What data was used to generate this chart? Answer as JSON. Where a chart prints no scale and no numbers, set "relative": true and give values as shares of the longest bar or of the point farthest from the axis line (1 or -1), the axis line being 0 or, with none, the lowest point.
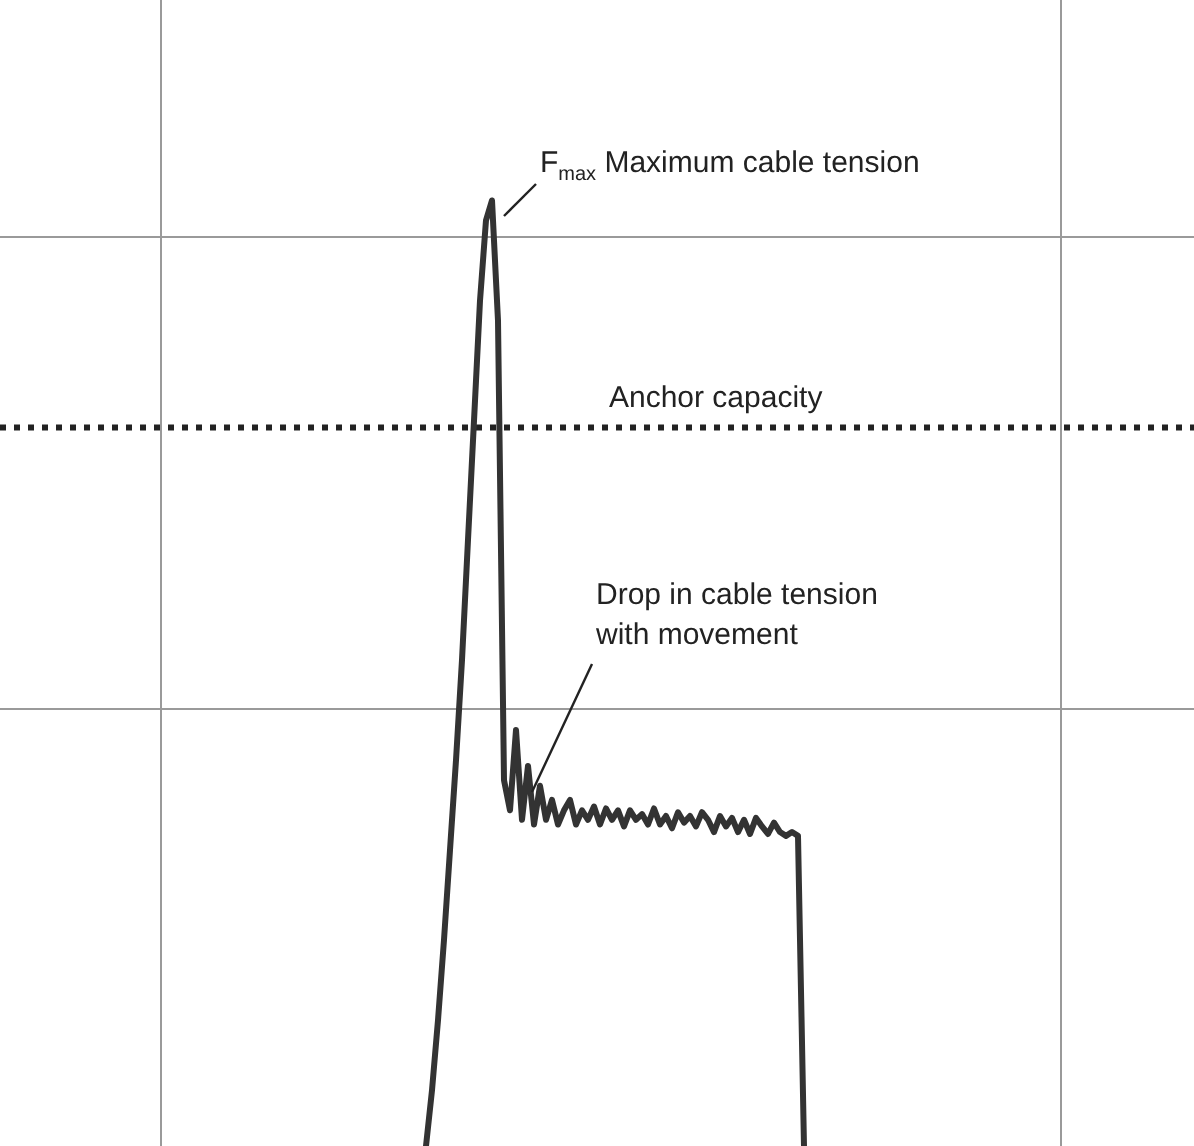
{
  "chart_data": {
    "type": "line",
    "relative": true,
    "grid": true,
    "legend": false,
    "marker": "none",
    "line_style": "solid",
    "categories": [
      null,
      null,
      null,
      null,
      null,
      null,
      null,
      null,
      null,
      null,
      null,
      null,
      null,
      null,
      null,
      null,
      null,
      null,
      null,
      null,
      null,
      null,
      null,
      null,
      null,
      null,
      null,
      null,
      null,
      null,
      null,
      null,
      null,
      null,
      null,
      null,
      null,
      null,
      null,
      null,
      null,
      null,
      null,
      null,
      null,
      null,
      null,
      null,
      null,
      null,
      null,
      null,
      null,
      null,
      null,
      null,
      null,
      null,
      null,
      null,
      null,
      null,
      null,
      null,
      null,
      null,
      null,
      null,
      null,
      null,
      null,
      null,
      null,
      null,
      null,
      null,
      null,
      null,
      null,
      null,
      null,
      null,
      null,
      null,
      null,
      null,
      null,
      null,
      null,
      null,
      null,
      null,
      null,
      null,
      null,
      null,
      null,
      null,
      null,
      null,
      null,
      null,
      null,
      null,
      null,
      null,
      null,
      null,
      null,
      null,
      null,
      null,
      null,
      null,
      null,
      null,
      null,
      null,
      null,
      null,
      null,
      null,
      null,
      null,
      null,
      null,
      null,
      null,
      null,
      null,
      null,
      null,
      null,
      null,
      null,
      null,
      null,
      null,
      null,
      null,
      null,
      null,
      null,
      null,
      null,
      null,
      null,
      null,
      null,
      null,
      null,
      null,
      null,
      null,
      null,
      null,
      null,
      null,
      null,
      null,
      null,
      null,
      null,
      null,
      null,
      null,
      null,
      null,
      null,
      null,
      null,
      null,
      null,
      null,
      null,
      null,
      null,
      null,
      null,
      null,
      null,
      null,
      null,
      null,
      null,
      null,
      null,
      null,
      null,
      null,
      null,
      null,
      null,
      null,
      null,
      null,
      null,
      null,
      null,
      null
    ],
    "series": [
      {
        "color": "#333333",
        "values": [
          null,
          null,
          null,
          null,
          null,
          null,
          null,
          null,
          null,
          null,
          null,
          null,
          null,
          null,
          null,
          null,
          null,
          null,
          null,
          null,
          null,
          null,
          null,
          null,
          null,
          null,
          null,
          null,
          null,
          null,
          null,
          null,
          null,
          null,
          null,
          null,
          null,
          null,
          null,
          null,
          null,
          null,
          null,
          null,
          null,
          null,
          null,
          null,
          null,
          null,
          null,
          null,
          null,
          null,
          null,
          null,
          null,
          null,
          null,
          null,
          null,
          null,
          null,
          null,
          null,
          null,
          null,
          null,
          null,
          null,
          null,
          0,
          0.059,
          0.133,
          0.218,
          0.313,
          0.408,
          0.514,
          0.641,
          0.767,
          0.894,
          0.979,
          1,
          0.873,
          0.387,
          0.355,
          0.44,
          0.345,
          0.402,
          0.34,
          0.381,
          0.345,
          0.366,
          0.34,
          0.355,
          0.366,
          0.34,
          0.355,
          0.345,
          0.359,
          0.34,
          0.357,
          0.345,
          0.355,
          0.338,
          0.355,
          0.345,
          0.351,
          0.34,
          0.357,
          0.34,
          0.349,
          0.336,
          0.353,
          0.342,
          0.349,
          0.338,
          0.353,
          0.345,
          0.332,
          0.349,
          0.338,
          0.347,
          0.332,
          0.345,
          0.33,
          0.347,
          0.338,
          0.33,
          0.342,
          0.332,
          0.328,
          0.332,
          0.328,
          0,
          null,
          null,
          null,
          null,
          null,
          null,
          null,
          null,
          null,
          null,
          null,
          null,
          null,
          null,
          null,
          null,
          null,
          null,
          null,
          null,
          null,
          null,
          null,
          null,
          null,
          null,
          null,
          null,
          null,
          null,
          null,
          null,
          null,
          null,
          null,
          null,
          null,
          null,
          null,
          null,
          null,
          null,
          null,
          null,
          null,
          null,
          null,
          null,
          null,
          null,
          null,
          null,
          null,
          null,
          null,
          null,
          null,
          null,
          null,
          null,
          null,
          null,
          null,
          null,
          null
        ]
      }
    ],
    "ref_lines": [
      {
        "axis": "y",
        "value": 0.76,
        "label": "Anchor capacity",
        "color": "#222222",
        "line_style": "dotted"
      }
    ],
    "annotations": [
      "F$_{max}$ Maximum cable tension",
      "Drop in cable tension\nwith movement"
    ]
  }
}
